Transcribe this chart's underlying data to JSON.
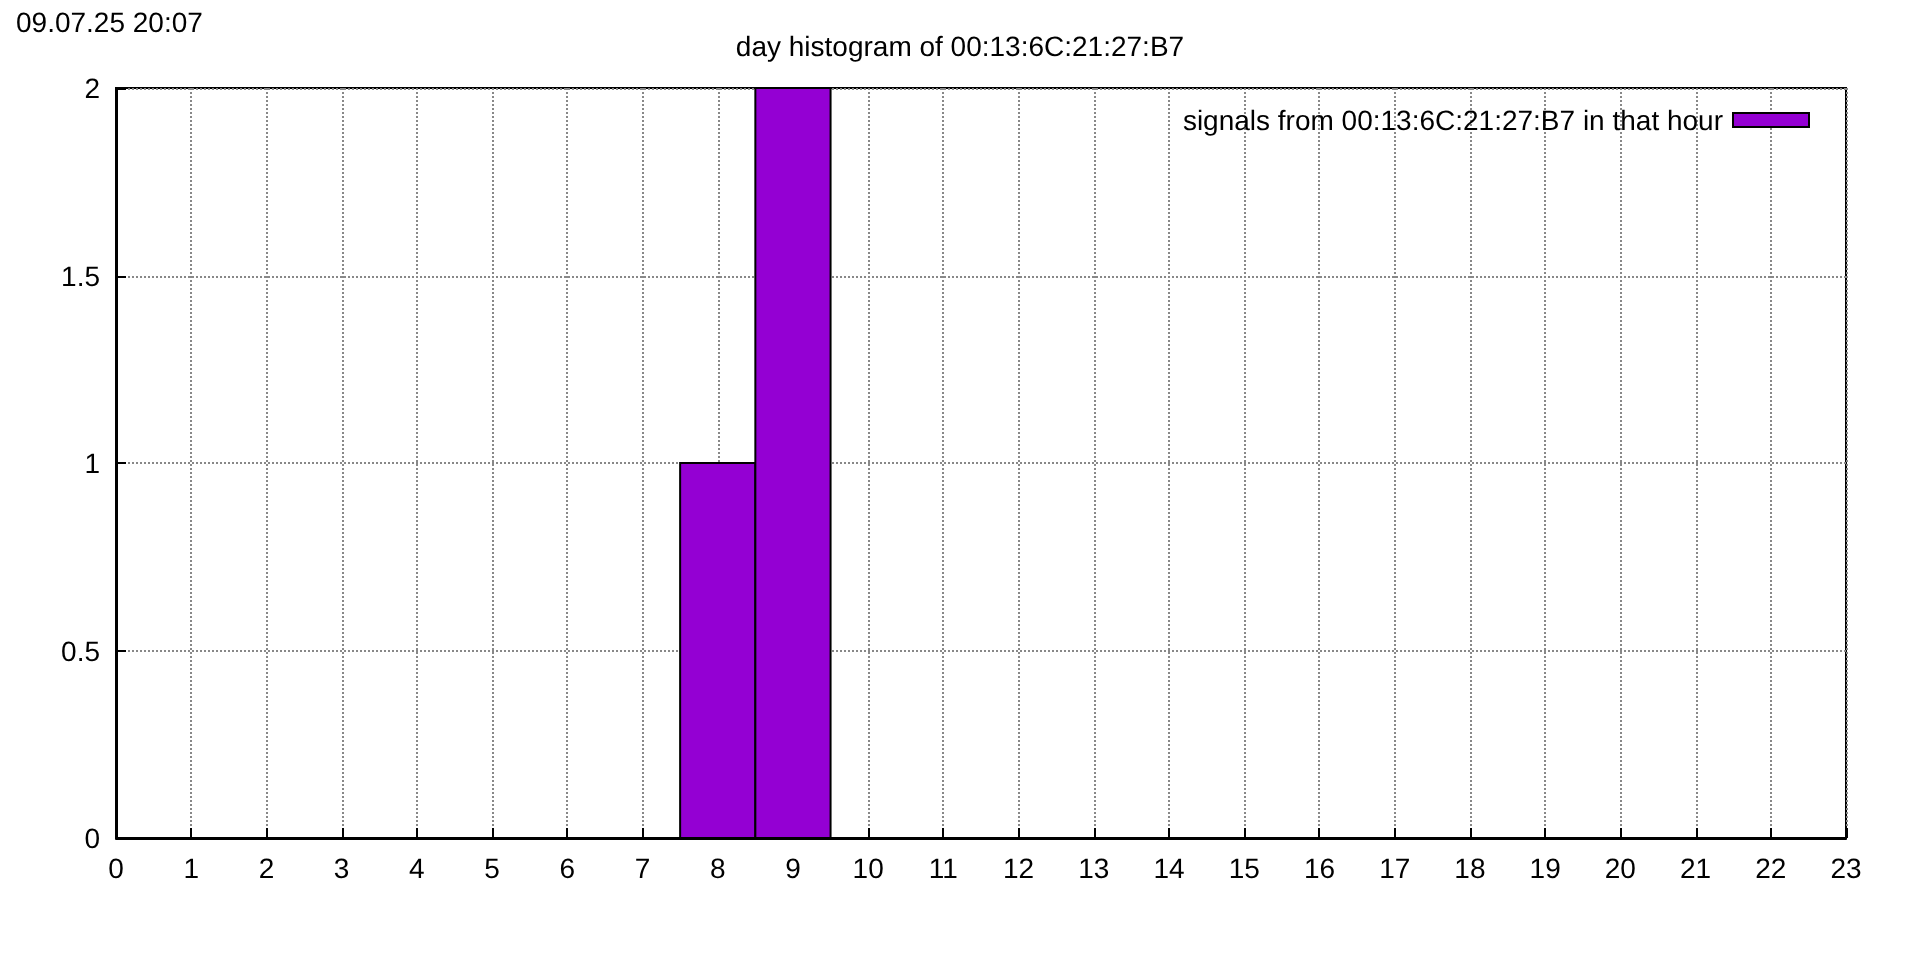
{
  "chart_data": {
    "type": "histogram",
    "title": "day histogram of 00:13:6C:21:27:B7",
    "annotations": [
      "09.07.25 20:07"
    ],
    "bins": [
      7.5,
      8.5,
      9.5
    ],
    "series": [
      {
        "name": "signals from 00:13:6C:21:27:B7 in that hour",
        "color": "#9400d3",
        "values": [
          1,
          2
        ]
      }
    ],
    "xlim": [
      0,
      23
    ],
    "xticks": [
      0,
      1,
      2,
      3,
      4,
      5,
      6,
      7,
      8,
      9,
      10,
      11,
      12,
      13,
      14,
      15,
      16,
      17,
      18,
      19,
      20,
      21,
      22,
      23
    ],
    "ylim": [
      0,
      2
    ],
    "yticks": [
      0,
      0.5,
      1,
      1.5,
      2
    ],
    "grid": true,
    "legend": "top right"
  }
}
